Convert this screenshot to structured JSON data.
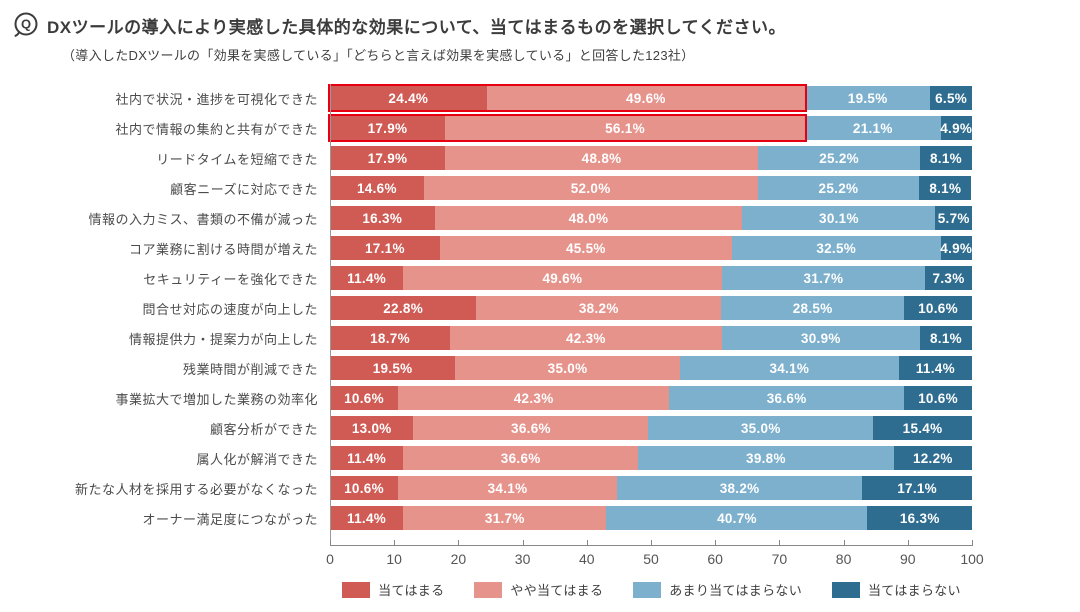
{
  "header": {
    "q_label": "Q",
    "title": "DXツールの導入により実感した具体的な効果について、当てはまるものを選択してください。",
    "subtitle": "（導入したDXツールの「効果を実感している」「どちらと言えば効果を実感している」と回答した123社）"
  },
  "chart_data": {
    "type": "bar",
    "orientation": "horizontal",
    "stacked": true,
    "unit": "%",
    "categories": [
      "社内で状況・進捗を可視化できた",
      "社内で情報の集約と共有ができた",
      "リードタイムを短縮できた",
      "顧客ニーズに対応できた",
      "情報の入力ミス、書類の不備が減った",
      "コア業務に割ける時間が増えた",
      "セキュリティーを強化できた",
      "問合せ対応の速度が向上した",
      "情報提供力・提案力が向上した",
      "残業時間が削減できた",
      "事業拡大で増加した業務の効率化",
      "顧客分析ができた",
      "属人化が解消できた",
      "新たな人材を採用する必要がなくなった",
      "オーナー満足度につながった"
    ],
    "series": [
      {
        "key": "agree",
        "name": "当てはまる",
        "color": "#cf5b54",
        "values": [
          24.4,
          17.9,
          17.9,
          14.6,
          16.3,
          17.1,
          11.4,
          22.8,
          18.7,
          19.5,
          10.6,
          13.0,
          11.4,
          10.6,
          11.4
        ]
      },
      {
        "key": "somewhat-agree",
        "name": "やや当てはまる",
        "color": "#e6938c",
        "values": [
          49.6,
          56.1,
          48.8,
          52.0,
          48.0,
          45.5,
          49.6,
          38.2,
          42.3,
          35.0,
          42.3,
          36.6,
          36.6,
          34.1,
          31.7
        ]
      },
      {
        "key": "somewhat-disagree",
        "name": "あまり当てはまらない",
        "color": "#7db0cd",
        "values": [
          19.5,
          21.1,
          25.2,
          25.2,
          30.1,
          32.5,
          31.7,
          28.5,
          30.9,
          34.1,
          36.6,
          35.0,
          39.8,
          38.2,
          40.7
        ]
      },
      {
        "key": "disagree",
        "name": "当てはまらない",
        "color": "#2e6d90",
        "values": [
          6.5,
          4.9,
          8.1,
          8.1,
          5.7,
          4.9,
          7.3,
          10.6,
          8.1,
          11.4,
          10.6,
          15.4,
          12.2,
          17.1,
          16.3
        ]
      }
    ],
    "highlighted_rows": [
      0,
      1
    ],
    "highlight_color": "#e60012",
    "x_ticks": [
      0,
      10,
      20,
      30,
      40,
      50,
      60,
      70,
      80,
      90,
      100
    ],
    "xlim": [
      0,
      100
    ],
    "grid": false,
    "legend_position": "bottom"
  }
}
